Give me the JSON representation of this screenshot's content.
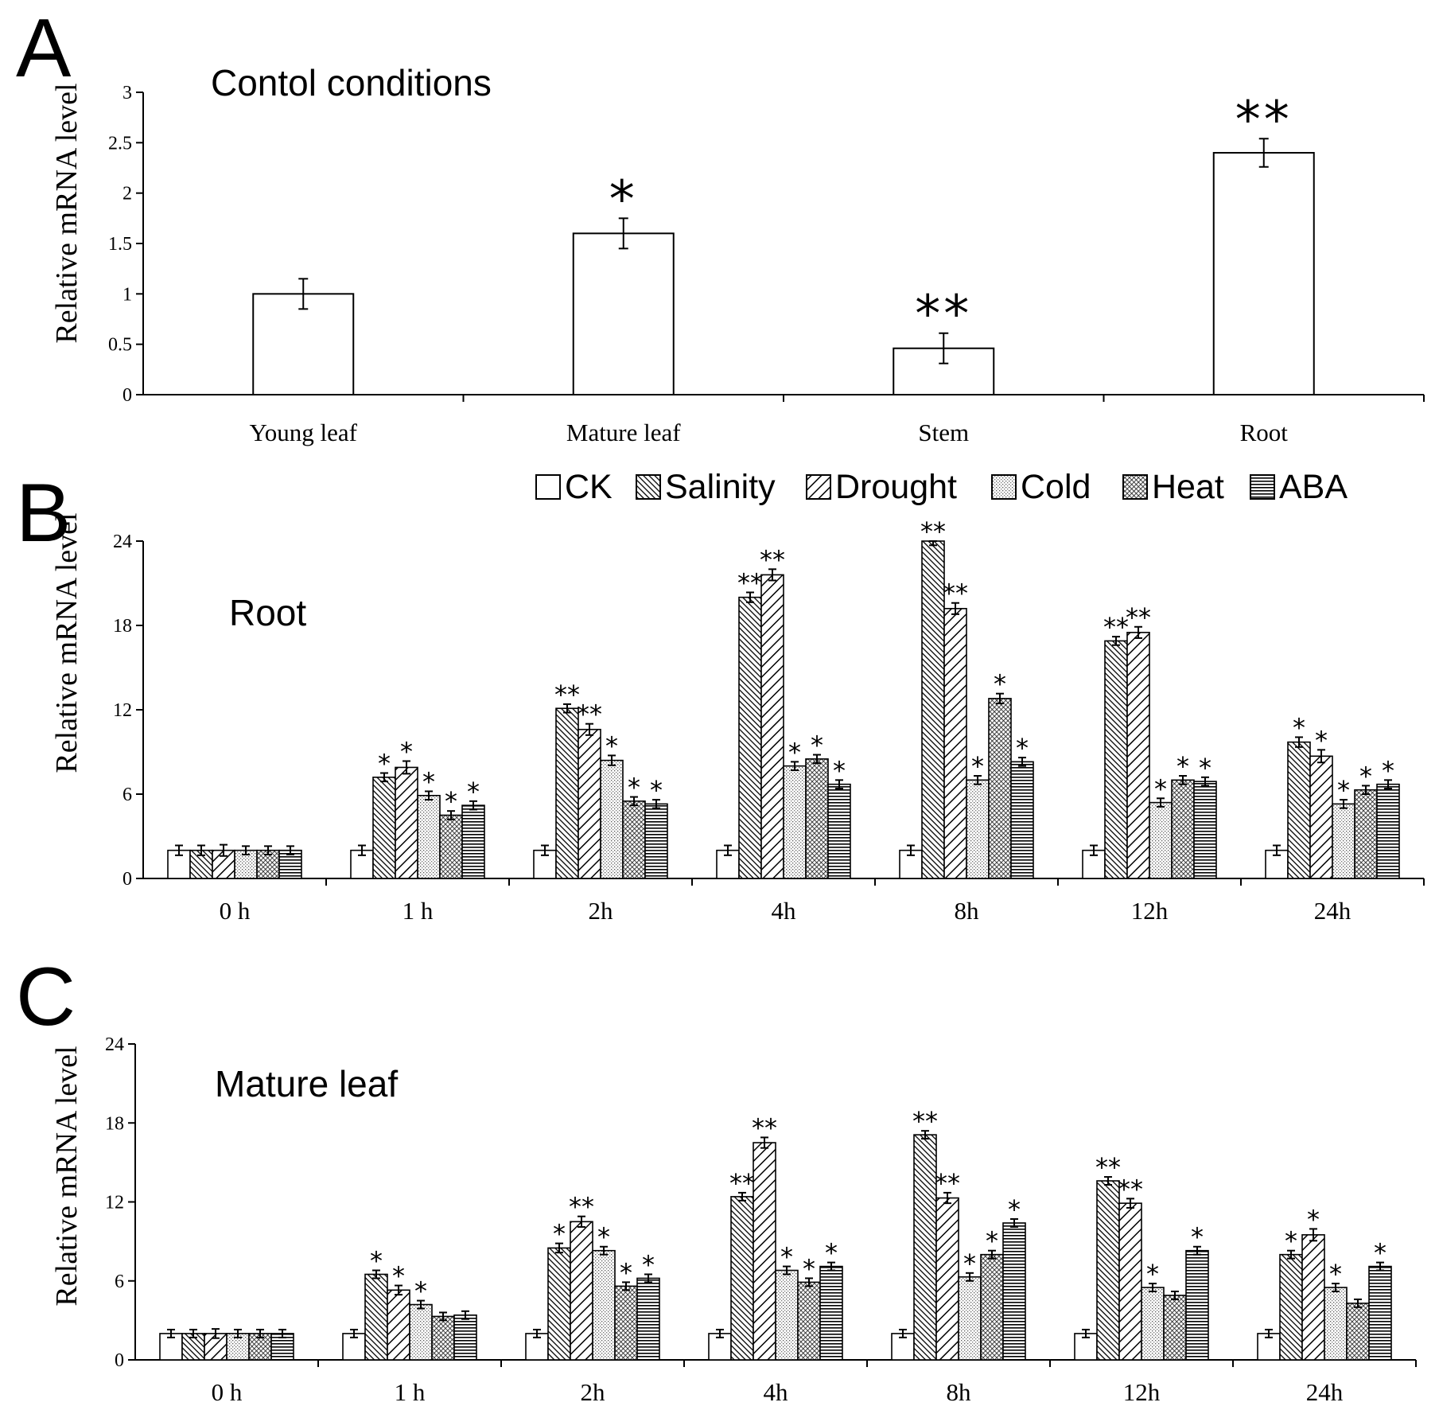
{
  "legend": {
    "series": [
      {
        "name": "CK",
        "pattern": "solid"
      },
      {
        "name": "Salinity",
        "pattern": "dense-back-diagonal"
      },
      {
        "name": "Drought",
        "pattern": "wide-forward-diagonal"
      },
      {
        "name": "Cold",
        "pattern": "dots"
      },
      {
        "name": "Heat",
        "pattern": "crosshatch"
      },
      {
        "name": "ABA",
        "pattern": "horizontal"
      }
    ]
  },
  "chart_data": [
    {
      "panel": "A",
      "type": "bar",
      "title": "Contol conditions",
      "ylabel": "Relative mRNA level",
      "ylim": [
        0,
        3
      ],
      "yticks": [
        "0",
        "0.5",
        "1",
        "1.5",
        "2",
        "2.5",
        "3"
      ],
      "categories": [
        "Young  leaf",
        "Mature leaf",
        "Stem",
        "Root"
      ],
      "values": [
        1.0,
        1.6,
        0.46,
        2.4
      ],
      "errors": [
        0.15,
        0.15,
        0.15,
        0.14
      ],
      "significance": [
        "",
        "*",
        "**",
        "**"
      ]
    },
    {
      "panel": "B",
      "type": "bar",
      "title": "Root",
      "ylabel": "Relative mRNA level",
      "ylim": [
        0,
        24
      ],
      "yticks": [
        "0",
        "6",
        "12",
        "18",
        "24"
      ],
      "categories": [
        "0 h",
        "1 h",
        "2h",
        "4h",
        "8h",
        "12h",
        "24h"
      ],
      "series": [
        {
          "name": "CK",
          "values": [
            2,
            2,
            2,
            2,
            2,
            2,
            2
          ],
          "errors": [
            0.35,
            0.35,
            0.35,
            0.35,
            0.35,
            0.35,
            0.35
          ],
          "significance": [
            "",
            "",
            "",
            "",
            "",
            "",
            ""
          ]
        },
        {
          "name": "Salinity",
          "values": [
            2,
            7.2,
            12.1,
            20.0,
            24.0,
            16.9,
            9.7
          ],
          "errors": [
            0.35,
            0.3,
            0.3,
            0.35,
            0.3,
            0.3,
            0.35
          ],
          "significance": [
            "",
            "*",
            "**",
            "**",
            "**",
            "**",
            "*"
          ]
        },
        {
          "name": "Drought",
          "values": [
            2,
            7.9,
            10.6,
            21.6,
            19.2,
            17.5,
            8.7
          ],
          "errors": [
            0.4,
            0.45,
            0.4,
            0.4,
            0.4,
            0.4,
            0.45
          ],
          "significance": [
            "",
            "*",
            "**",
            "**",
            "**",
            "**",
            "*"
          ]
        },
        {
          "name": "Cold",
          "values": [
            2,
            5.9,
            8.4,
            8.0,
            7.0,
            5.4,
            5.3
          ],
          "errors": [
            0.3,
            0.3,
            0.35,
            0.3,
            0.3,
            0.3,
            0.3
          ],
          "significance": [
            "",
            "*",
            "*",
            "*",
            "*",
            "*",
            "*"
          ]
        },
        {
          "name": "Heat",
          "values": [
            2,
            4.5,
            5.5,
            8.5,
            12.8,
            7.0,
            6.3
          ],
          "errors": [
            0.3,
            0.3,
            0.3,
            0.3,
            0.35,
            0.3,
            0.3
          ],
          "significance": [
            "",
            "*",
            "*",
            "*",
            "*",
            "*",
            "*"
          ]
        },
        {
          "name": "ABA",
          "values": [
            2,
            5.2,
            5.3,
            6.7,
            8.3,
            6.9,
            6.7
          ],
          "errors": [
            0.3,
            0.3,
            0.3,
            0.3,
            0.3,
            0.3,
            0.3
          ],
          "significance": [
            "",
            "*",
            "*",
            "*",
            "*",
            "*",
            "*"
          ]
        }
      ]
    },
    {
      "panel": "C",
      "type": "bar",
      "title": "Mature leaf",
      "ylabel": "Relative mRNA level",
      "ylim": [
        0,
        24
      ],
      "yticks": [
        "0",
        "6",
        "12",
        "18",
        "24"
      ],
      "categories": [
        "0 h",
        "1 h",
        "2h",
        "4h",
        "8h",
        "12h",
        "24h"
      ],
      "series": [
        {
          "name": "CK",
          "values": [
            2,
            2,
            2,
            2,
            2,
            2,
            2
          ],
          "errors": [
            0.3,
            0.3,
            0.3,
            0.3,
            0.3,
            0.3,
            0.3
          ],
          "significance": [
            "",
            "",
            "",
            "",
            "",
            "",
            ""
          ]
        },
        {
          "name": "Salinity",
          "values": [
            2,
            6.5,
            8.5,
            12.4,
            17.1,
            13.6,
            8.0
          ],
          "errors": [
            0.3,
            0.3,
            0.35,
            0.3,
            0.3,
            0.3,
            0.3
          ],
          "significance": [
            "",
            "*",
            "*",
            "**",
            "**",
            "**",
            "*"
          ]
        },
        {
          "name": "Drought",
          "values": [
            2,
            5.3,
            10.5,
            16.5,
            12.3,
            11.9,
            9.5
          ],
          "errors": [
            0.35,
            0.35,
            0.4,
            0.4,
            0.4,
            0.35,
            0.45
          ],
          "significance": [
            "",
            "*",
            "**",
            "**",
            "**",
            "**",
            "*"
          ]
        },
        {
          "name": "Cold",
          "values": [
            2,
            4.2,
            8.3,
            6.8,
            6.3,
            5.5,
            5.5
          ],
          "errors": [
            0.3,
            0.3,
            0.3,
            0.3,
            0.3,
            0.3,
            0.3
          ],
          "significance": [
            "",
            "*",
            "*",
            "*",
            "*",
            "*",
            "*"
          ]
        },
        {
          "name": "Heat",
          "values": [
            2,
            3.3,
            5.6,
            5.9,
            8.0,
            4.9,
            4.3
          ],
          "errors": [
            0.3,
            0.3,
            0.3,
            0.3,
            0.3,
            0.3,
            0.3
          ],
          "significance": [
            "",
            "",
            "*",
            "*",
            "*",
            "",
            ""
          ]
        },
        {
          "name": "ABA",
          "values": [
            2,
            3.4,
            6.2,
            7.1,
            10.4,
            8.3,
            7.1
          ],
          "errors": [
            0.3,
            0.3,
            0.3,
            0.3,
            0.3,
            0.3,
            0.3
          ],
          "significance": [
            "",
            "",
            "*",
            "*",
            "*",
            "*",
            "*"
          ]
        }
      ]
    }
  ]
}
